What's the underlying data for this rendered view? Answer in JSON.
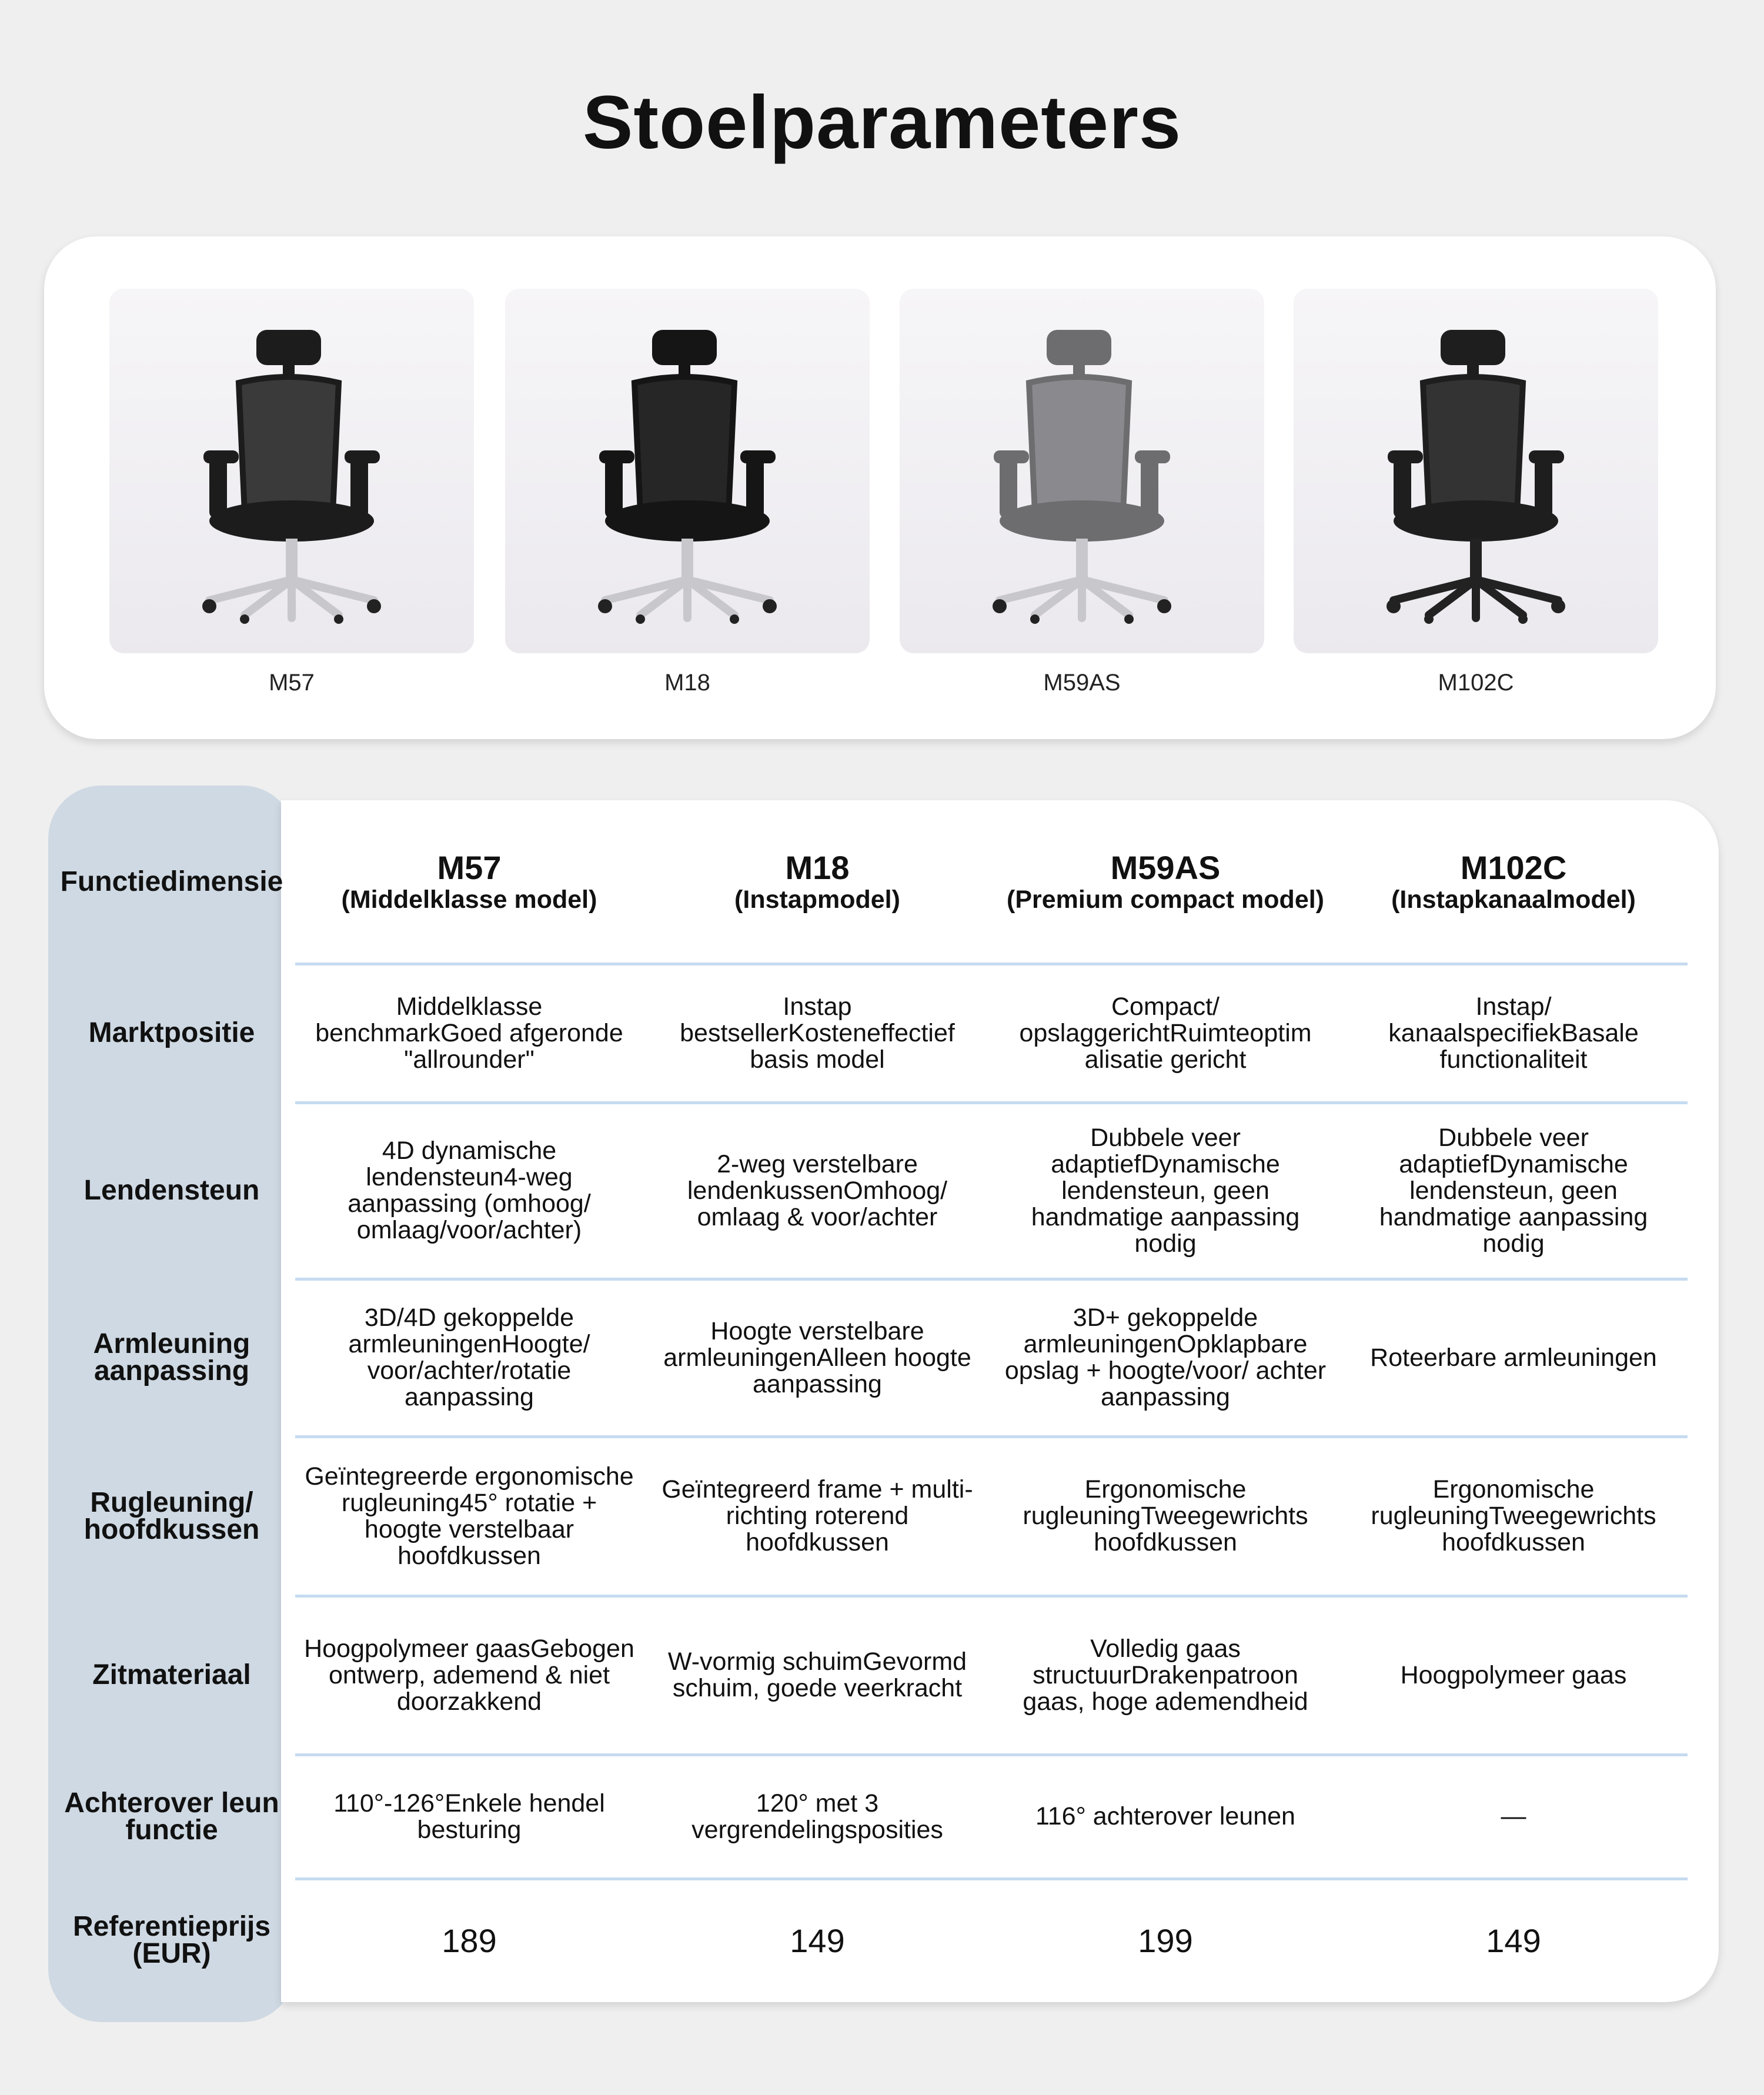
{
  "title": "Stoelparameters",
  "products": [
    {
      "name": "M57",
      "icon": "chair-image-black-mesh"
    },
    {
      "name": "M18",
      "icon": "chair-image-black-foam"
    },
    {
      "name": "M59AS",
      "icon": "chair-image-grey-mesh"
    },
    {
      "name": "M102C",
      "icon": "chair-image-black-compact"
    }
  ],
  "colors": {
    "label_column": "#cfd9e3",
    "divider": "#c6dbf1",
    "background": "#efefef"
  },
  "table": {
    "header_label": "Functiedimensie",
    "columns": [
      {
        "model": "M57",
        "subtitle": "(Middelklasse model)"
      },
      {
        "model": "M18",
        "subtitle": "(Instapmodel)"
      },
      {
        "model": "M59AS",
        "subtitle": "(Premium compact model)"
      },
      {
        "model": "M102C",
        "subtitle": "(Instapkanaalmodel)"
      }
    ],
    "rows": [
      {
        "label": "Marktpositie",
        "cells": [
          "Middelklasse benchmarkGoed afgeronde \"allrounder\"",
          "Instap bestsellerKosteneffectief basis model",
          "Compact/ opslaggerichtRuimteoptim alisatie gericht",
          "Instap/ kanaalspecifiekBasale functionaliteit"
        ]
      },
      {
        "label": "Lendensteun",
        "cells": [
          "4D dynamische lendensteun4-weg aanpassing (omhoog/ omlaag/voor/achter)",
          "2-weg verstelbare lendenkussenOmhoog/ omlaag & voor/achter",
          "Dubbele veer adaptiefDynamische lendensteun, geen handmatige aanpassing nodig",
          "Dubbele veer adaptiefDynamische lendensteun, geen handmatige aanpassing nodig"
        ]
      },
      {
        "label": "Armleuning aanpassing",
        "cells": [
          "3D/4D gekoppelde armleuningenHoogte/ voor/achter/rotatie aanpassing",
          "Hoogte verstelbare armleuningenAlleen hoogte aanpassing",
          "3D+ gekoppelde armleuningenOpklapbare opslag + hoogte/voor/ achter aanpassing",
          "Roteerbare armleuningen"
        ]
      },
      {
        "label": "Rugleuning/ hoofdkussen",
        "cells": [
          "Geïntegreerde ergonomische rugleuning45° rotatie + hoogte verstelbaar hoofdkussen",
          "Geïntegreerd frame + multi-richting roterend hoofdkussen",
          "Ergonomische rugleuningTweegewrichts hoofdkussen",
          "Ergonomische rugleuningTweegewrichts hoofdkussen"
        ]
      },
      {
        "label": "Zitmateriaal",
        "cells": [
          "Hoogpolymeer gaasGebogen ontwerp, ademend & niet doorzakkend",
          "W-vormig schuimGevormd schuim, goede veerkracht",
          "Volledig gaas structuurDrakenpatroon gaas, hoge ademendheid",
          "Hoogpolymeer gaas"
        ]
      },
      {
        "label": "Achterover leun functie",
        "cells": [
          "110°-126°Enkele hendel besturing",
          "120° met 3 vergrendelingsposities",
          "116° achterover leunen",
          "—"
        ]
      },
      {
        "label": "Referentieprijs (EUR)",
        "cells": [
          "189",
          "149",
          "199",
          "149"
        ]
      }
    ]
  }
}
